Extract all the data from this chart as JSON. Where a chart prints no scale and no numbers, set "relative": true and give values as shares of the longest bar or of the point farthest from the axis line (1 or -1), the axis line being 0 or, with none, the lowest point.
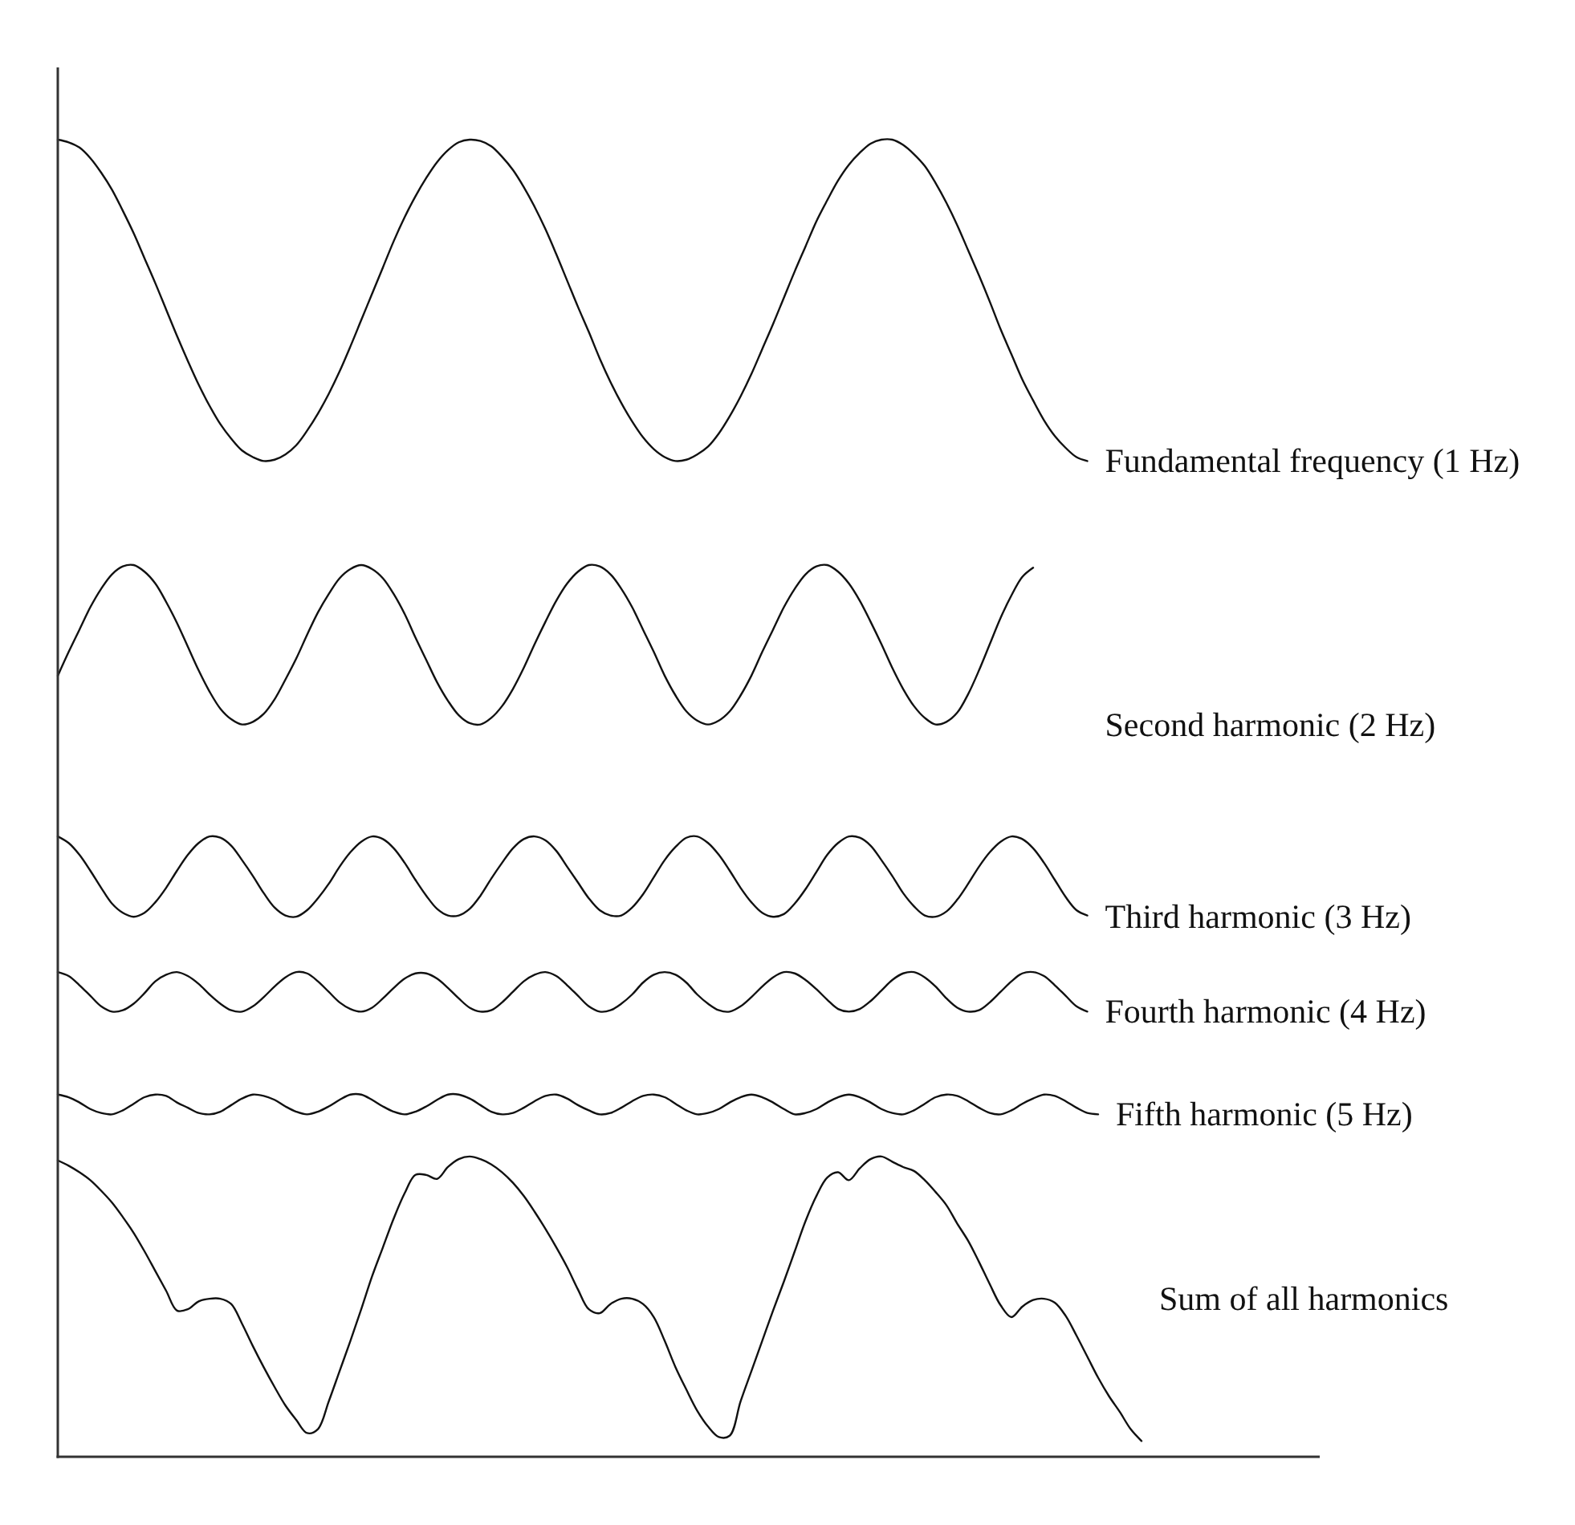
{
  "chart_data": {
    "type": "line",
    "relative": true,
    "tick_labels": false,
    "categories": [
      null,
      null,
      null,
      null,
      null,
      null,
      null,
      null,
      null,
      null,
      null,
      null,
      null,
      null,
      null,
      null,
      null,
      null,
      null,
      null,
      null,
      null,
      null,
      null,
      null,
      null,
      null,
      null,
      null,
      null,
      null,
      null,
      null,
      null,
      null,
      null,
      null,
      null,
      null,
      null,
      null,
      null,
      null,
      null,
      null,
      null,
      null,
      null,
      null,
      null,
      null,
      null,
      null,
      null,
      null,
      null,
      null,
      null,
      null,
      null,
      null,
      null,
      null,
      null,
      null,
      null,
      null,
      null,
      null,
      null,
      null,
      null,
      null,
      null,
      null,
      null,
      null,
      null,
      null,
      null,
      null,
      null,
      null,
      null,
      null,
      null,
      null,
      null,
      null,
      null,
      null,
      null,
      null,
      null,
      null,
      null,
      null,
      null,
      null,
      null,
      null
    ],
    "series": [
      {
        "name": "Fundamental frequency (1 Hz)",
        "color": "#111111",
        "values": [
          1.0,
          0.998,
          0.994,
          0.986,
          0.975,
          0.962,
          0.946,
          0.929,
          0.91,
          0.891,
          0.871,
          0.851,
          0.832,
          0.814,
          0.798,
          0.784,
          0.773,
          0.764,
          0.759,
          0.756,
          0.757,
          0.761,
          0.768,
          0.779,
          0.792,
          0.807,
          0.824,
          0.843,
          0.863,
          0.883,
          0.903,
          0.923,
          0.941,
          0.957,
          0.971,
          0.983,
          0.992,
          0.998,
          1.0,
          0.999,
          0.995,
          0.987,
          0.977,
          0.964,
          0.949,
          0.932,
          0.913,
          0.893,
          0.873,
          0.854,
          0.834,
          0.816,
          0.8,
          0.786,
          0.774,
          0.765,
          0.759,
          0.756,
          0.757,
          0.761,
          0.767,
          0.777,
          0.79,
          0.805,
          0.822,
          0.841,
          0.86,
          0.88,
          0.9,
          0.919,
          0.938,
          0.954,
          0.969,
          0.981,
          0.99,
          0.997,
          1.0,
          1.0,
          0.996,
          0.989,
          0.98,
          0.967,
          0.952,
          0.935,
          0.916,
          0.897,
          0.877,
          0.856,
          0.837,
          0.818,
          0.802,
          0.787,
          0.775,
          0.766,
          0.759,
          0.756,
          null,
          null,
          null,
          null,
          null
        ]
      },
      {
        "name": "Second harmonic (2 Hz)",
        "color": "#111111",
        "values": [
          0.593,
          0.611,
          0.628,
          0.645,
          0.659,
          0.67,
          0.676,
          0.677,
          0.672,
          0.663,
          0.649,
          0.633,
          0.615,
          0.597,
          0.581,
          0.568,
          0.56,
          0.556,
          0.558,
          0.564,
          0.575,
          0.59,
          0.606,
          0.624,
          0.641,
          0.655,
          0.667,
          0.674,
          0.677,
          0.674,
          0.667,
          0.655,
          0.64,
          0.622,
          0.605,
          0.588,
          0.574,
          0.563,
          0.557,
          0.556,
          0.561,
          0.57,
          0.583,
          0.599,
          0.617,
          0.634,
          0.65,
          0.663,
          0.672,
          0.677,
          0.676,
          0.67,
          0.659,
          0.645,
          0.628,
          0.611,
          0.593,
          0.578,
          0.566,
          0.559,
          0.556,
          0.559,
          0.566,
          0.578,
          0.593,
          0.611,
          0.628,
          0.645,
          0.659,
          0.67,
          0.676,
          0.677,
          0.672,
          0.663,
          0.65,
          0.634,
          0.617,
          0.599,
          0.583,
          0.57,
          0.561,
          0.556,
          0.558,
          0.565,
          0.579,
          0.597,
          0.617,
          0.637,
          0.654,
          0.668,
          0.675,
          null,
          null,
          null,
          null,
          null,
          null,
          null,
          null,
          null,
          null
        ]
      },
      {
        "name": "Third harmonic (3 Hz)",
        "color": "#111111",
        "values": [
          0.471,
          0.466,
          0.457,
          0.445,
          0.432,
          0.42,
          0.413,
          0.41,
          0.413,
          0.421,
          0.432,
          0.445,
          0.457,
          0.466,
          0.471,
          0.47,
          0.464,
          0.453,
          0.441,
          0.428,
          0.417,
          0.411,
          0.41,
          0.415,
          0.424,
          0.435,
          0.448,
          0.459,
          0.467,
          0.471,
          0.469,
          0.462,
          0.451,
          0.438,
          0.426,
          0.416,
          0.411,
          0.411,
          0.416,
          0.426,
          0.439,
          0.451,
          0.462,
          0.469,
          0.471,
          0.468,
          0.46,
          0.448,
          0.436,
          0.424,
          0.415,
          0.411,
          0.411,
          0.417,
          0.427,
          0.44,
          0.453,
          0.463,
          0.47,
          0.471,
          0.466,
          0.457,
          0.445,
          0.432,
          0.421,
          0.413,
          0.41,
          0.412,
          0.42,
          0.431,
          0.444,
          0.457,
          0.466,
          0.471,
          0.47,
          0.464,
          0.453,
          0.441,
          0.428,
          0.418,
          0.411,
          0.41,
          0.414,
          0.423,
          0.435,
          0.448,
          0.459,
          0.467,
          0.471,
          0.469,
          0.462,
          0.451,
          0.438,
          0.425,
          0.415,
          0.411,
          null,
          null,
          null,
          null,
          null
        ]
      },
      {
        "name": "Fourth harmonic (4 Hz)",
        "color": "#111111",
        "values": [
          0.368,
          0.365,
          0.358,
          0.35,
          0.342,
          0.338,
          0.339,
          0.344,
          0.352,
          0.361,
          0.366,
          0.368,
          0.365,
          0.359,
          0.351,
          0.344,
          0.339,
          0.338,
          0.342,
          0.349,
          0.357,
          0.364,
          0.368,
          0.367,
          0.361,
          0.353,
          0.345,
          0.34,
          0.338,
          0.341,
          0.348,
          0.356,
          0.363,
          0.367,
          0.367,
          0.363,
          0.356,
          0.348,
          0.341,
          0.338,
          0.339,
          0.345,
          0.353,
          0.361,
          0.366,
          0.368,
          0.365,
          0.358,
          0.35,
          0.342,
          0.338,
          0.339,
          0.344,
          0.351,
          0.36,
          0.366,
          0.368,
          0.366,
          0.36,
          0.351,
          0.344,
          0.339,
          0.338,
          0.342,
          0.349,
          0.357,
          0.364,
          0.368,
          0.367,
          0.362,
          0.355,
          0.347,
          0.34,
          0.338,
          0.34,
          0.346,
          0.354,
          0.362,
          0.367,
          0.368,
          0.364,
          0.357,
          0.348,
          0.341,
          0.338,
          0.339,
          0.345,
          0.353,
          0.361,
          0.367,
          0.368,
          0.365,
          0.358,
          0.35,
          0.342,
          0.338,
          null,
          null,
          null,
          null,
          null
        ]
      },
      {
        "name": "Fifth harmonic (5 Hz)",
        "color": "#111111",
        "values": [
          0.275,
          0.273,
          0.269,
          0.264,
          0.261,
          0.26,
          0.263,
          0.268,
          0.273,
          0.275,
          0.274,
          0.269,
          0.265,
          0.261,
          0.26,
          0.262,
          0.267,
          0.272,
          0.275,
          0.274,
          0.271,
          0.266,
          0.262,
          0.26,
          0.262,
          0.266,
          0.271,
          0.275,
          0.275,
          0.271,
          0.266,
          0.262,
          0.26,
          0.262,
          0.266,
          0.271,
          0.275,
          0.275,
          0.272,
          0.267,
          0.262,
          0.26,
          0.261,
          0.265,
          0.27,
          0.274,
          0.275,
          0.272,
          0.267,
          0.263,
          0.26,
          0.261,
          0.265,
          0.27,
          0.274,
          0.275,
          0.273,
          0.268,
          0.263,
          0.26,
          0.261,
          0.264,
          0.269,
          0.273,
          0.275,
          0.273,
          0.269,
          0.264,
          0.26,
          0.261,
          0.264,
          0.269,
          0.273,
          0.275,
          0.273,
          0.269,
          0.264,
          0.261,
          0.26,
          0.263,
          0.268,
          0.273,
          0.275,
          0.274,
          0.27,
          0.265,
          0.261,
          0.26,
          0.263,
          0.268,
          0.272,
          0.275,
          0.274,
          0.27,
          0.265,
          0.261,
          0.26,
          null,
          null,
          null,
          null
        ]
      },
      {
        "name": "Sum of all harmonics",
        "color": "#111111",
        "values": [
          0.225,
          0.221,
          0.216,
          0.21,
          0.202,
          0.193,
          0.182,
          0.17,
          0.156,
          0.141,
          0.126,
          0.111,
          0.112,
          0.118,
          0.12,
          0.12,
          0.116,
          0.101,
          0.084,
          0.068,
          0.053,
          0.039,
          0.028,
          0.018,
          0.021,
          0.042,
          0.065,
          0.088,
          0.112,
          0.137,
          0.159,
          0.181,
          0.2,
          0.214,
          0.214,
          0.211,
          0.22,
          0.226,
          0.228,
          0.226,
          0.222,
          0.216,
          0.208,
          0.198,
          0.186,
          0.173,
          0.159,
          0.144,
          0.127,
          0.112,
          0.109,
          0.116,
          0.12,
          0.12,
          0.116,
          0.106,
          0.088,
          0.068,
          0.051,
          0.035,
          0.023,
          0.015,
          0.016,
          0.042,
          0.065,
          0.088,
          0.111,
          0.133,
          0.156,
          0.179,
          0.198,
          0.212,
          0.216,
          0.21,
          0.219,
          0.226,
          0.228,
          0.224,
          0.22,
          0.217,
          0.21,
          0.201,
          0.191,
          0.177,
          0.164,
          0.148,
          0.131,
          0.115,
          0.106,
          0.114,
          0.119,
          0.12,
          0.117,
          0.107,
          0.092,
          0.076,
          0.06,
          0.046,
          0.034,
          0.021,
          0.012
        ]
      }
    ]
  }
}
